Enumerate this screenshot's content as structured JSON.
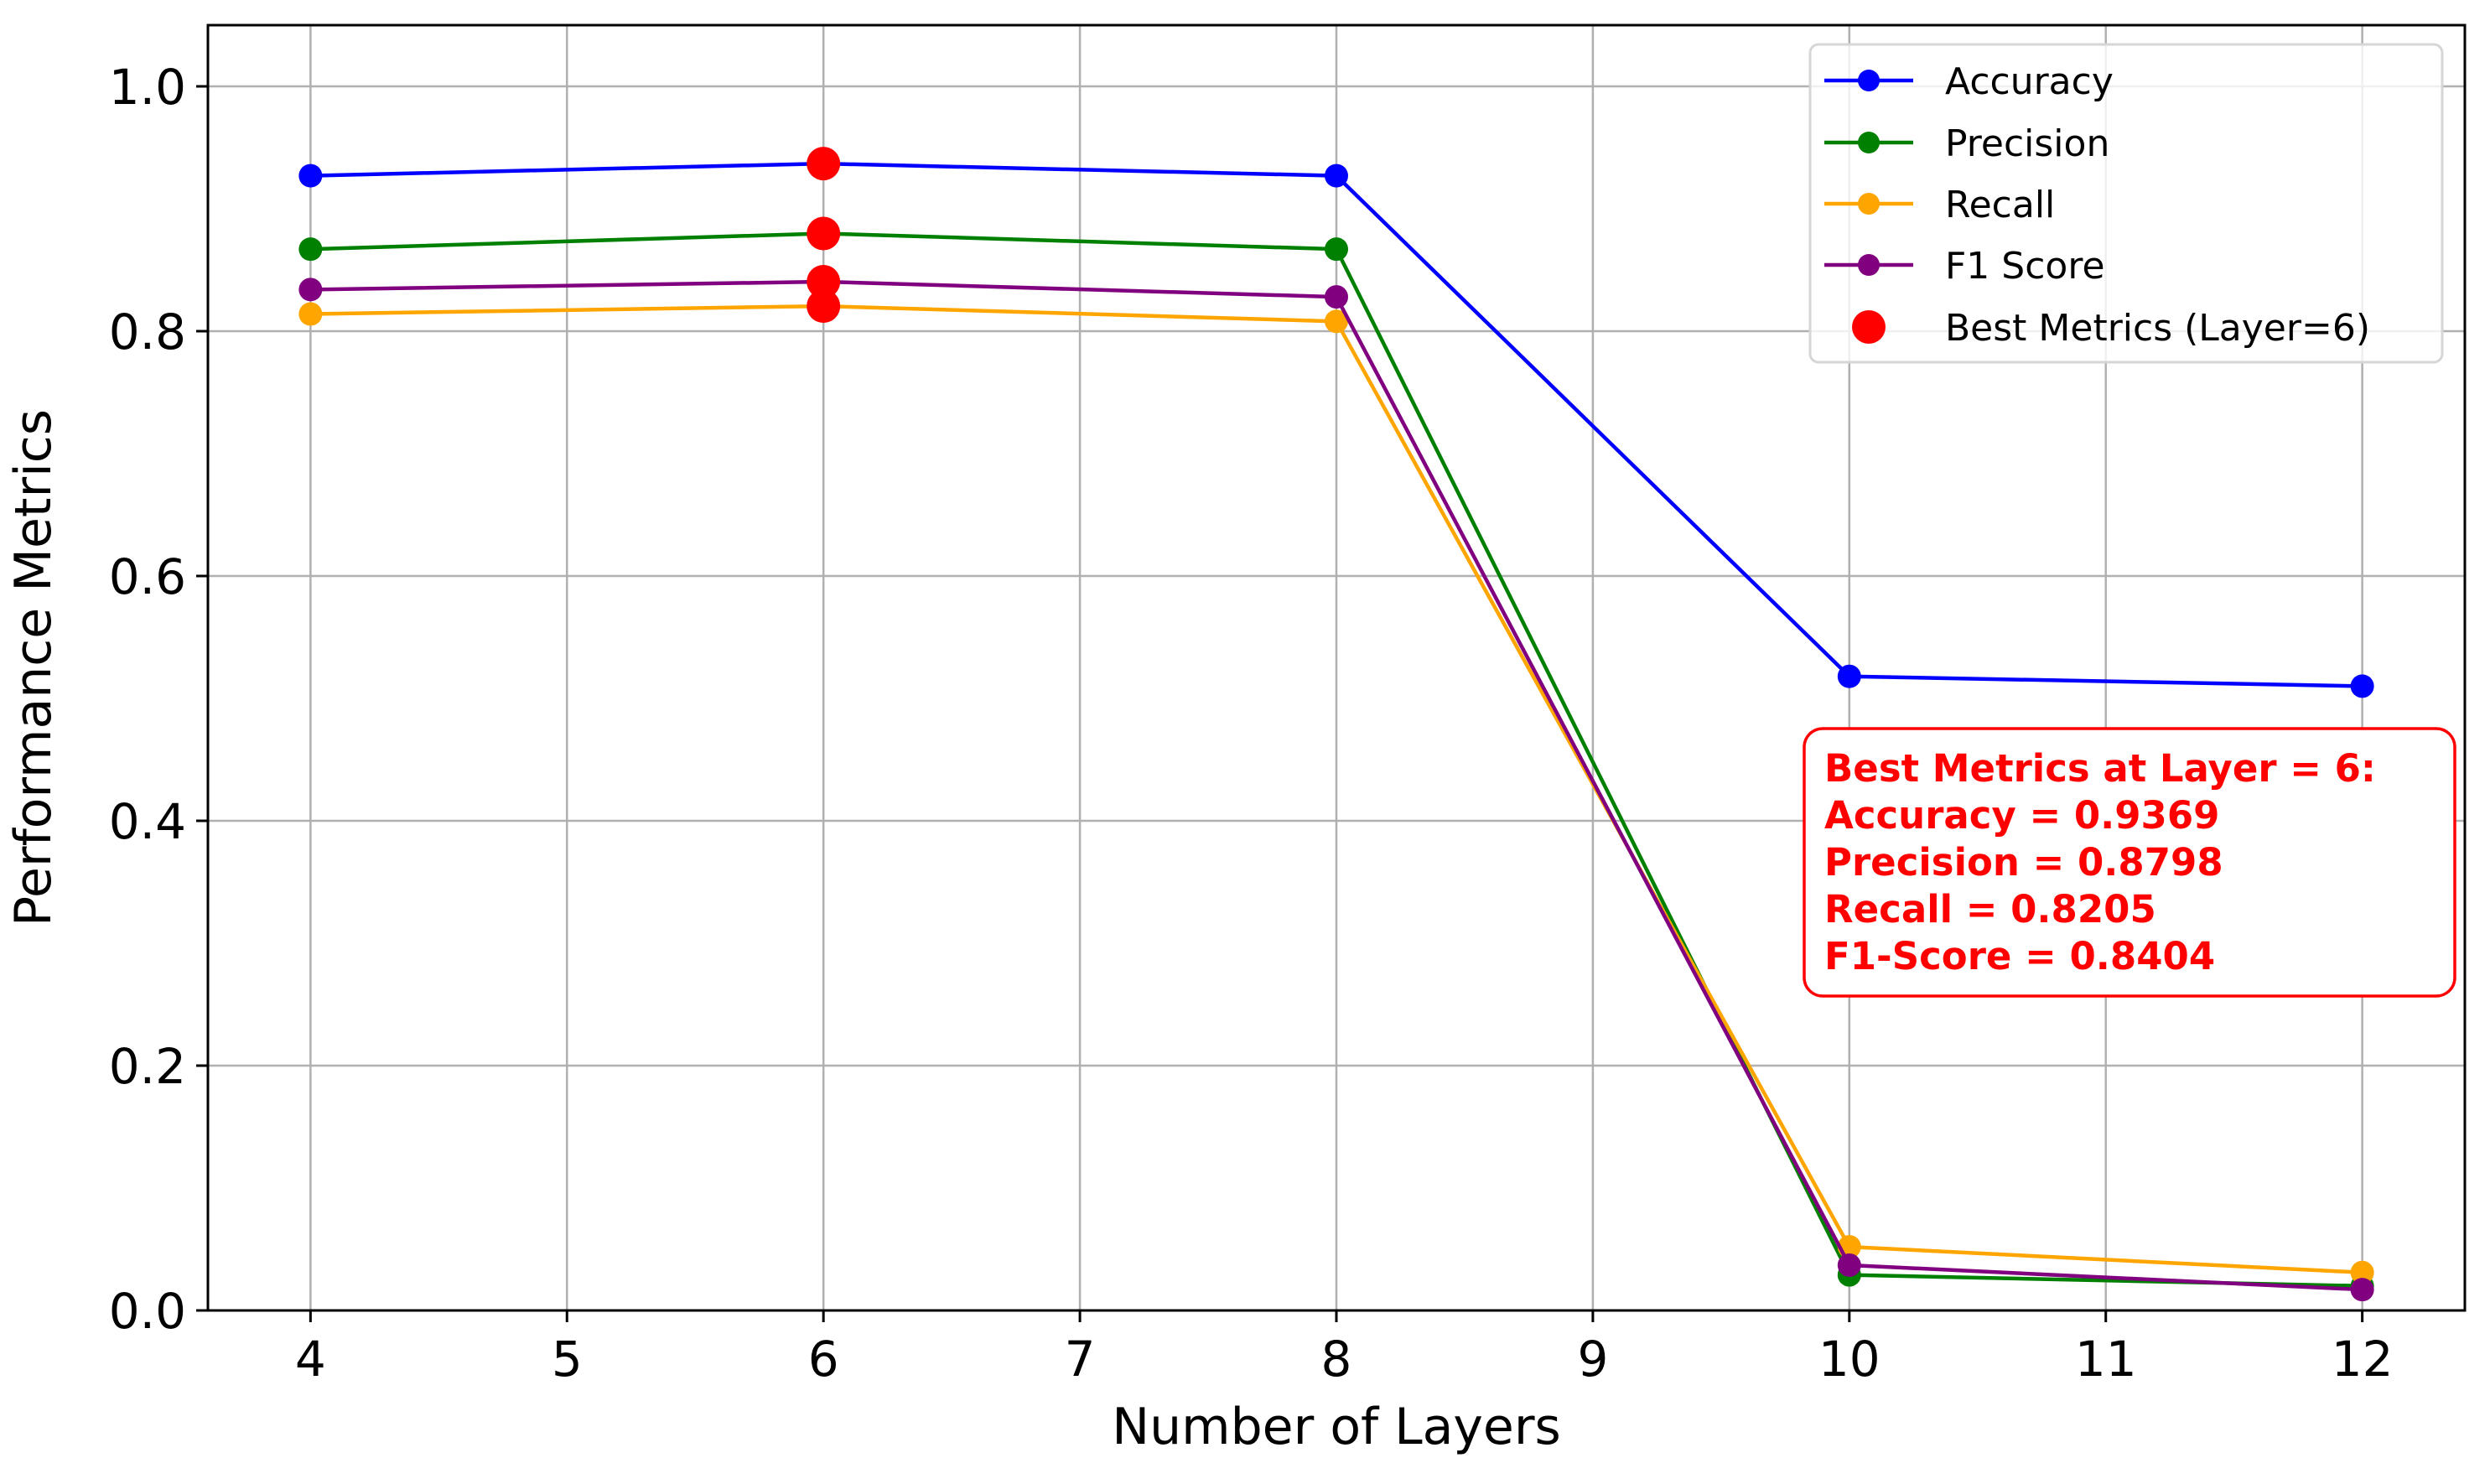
{
  "chart_data": {
    "type": "line",
    "title": "",
    "xlabel": "Number of Layers",
    "ylabel": "Performance Metrics",
    "x": [
      4,
      6,
      8,
      10,
      12
    ],
    "xticks": [
      "4",
      "5",
      "6",
      "7",
      "8",
      "9",
      "10",
      "11",
      "12"
    ],
    "yticks": [
      "0.0",
      "0.2",
      "0.4",
      "0.6",
      "0.8",
      "1.0"
    ],
    "xlim": [
      3.6,
      12.4
    ],
    "ylim": [
      0.0,
      1.05
    ],
    "grid": true,
    "legend_position": "upper right",
    "series": [
      {
        "name": "Accuracy",
        "color": "#0000ff",
        "values": [
          0.927,
          0.9369,
          0.927,
          0.518,
          0.51
        ]
      },
      {
        "name": "Precision",
        "color": "#008000",
        "values": [
          0.867,
          0.8798,
          0.867,
          0.029,
          0.02
        ]
      },
      {
        "name": "Recall",
        "color": "#ffa500",
        "values": [
          0.814,
          0.8205,
          0.808,
          0.052,
          0.031
        ]
      },
      {
        "name": "F1 Score",
        "color": "#800080",
        "values": [
          0.834,
          0.8404,
          0.828,
          0.037,
          0.017
        ]
      }
    ],
    "highlight": {
      "name": "Best Metrics (Layer=6)",
      "color": "#ff0000",
      "x": 6,
      "values": [
        0.9369,
        0.8798,
        0.8205,
        0.8404
      ]
    },
    "annotation": {
      "lines": [
        "Best Metrics at Layer = 6:",
        "Accuracy = 0.9369",
        "Precision = 0.8798",
        "Recall = 0.8205",
        "F1-Score = 0.8404"
      ],
      "color": "#ff0000"
    }
  }
}
